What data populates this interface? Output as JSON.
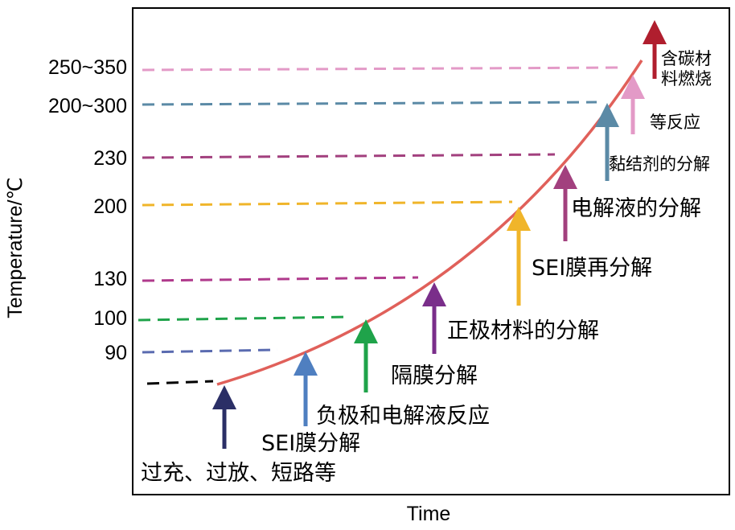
{
  "chart_data": {
    "type": "line",
    "xlabel": "Time",
    "ylabel": "Temperature/℃",
    "y_ticks": [
      "250~350",
      "200~300",
      "230",
      "200",
      "130",
      "100",
      "90"
    ],
    "threshold_lines": [
      {
        "color": "#000000"
      },
      {
        "color": "#5a6bb0"
      },
      {
        "color": "#1fa34a"
      },
      {
        "color": "#b03a8c"
      },
      {
        "color": "#f0b52a"
      },
      {
        "color": "#a2407e"
      },
      {
        "color": "#5b8aa6"
      },
      {
        "color": "#e39ac7"
      }
    ],
    "curve": {
      "color": "#e0605a"
    },
    "events": [
      {
        "label": "过充、过放、短路等",
        "color": "#2b2f66"
      },
      {
        "label": "SEI膜分解",
        "color": "#4f7fc0"
      },
      {
        "label": "负极和电解液反应",
        "color": "#1fa34a"
      },
      {
        "label": "隔膜分解",
        "color": "#7a2e8a"
      },
      {
        "label": "正极材料的分解",
        "color": "#f0b52a"
      },
      {
        "label": "SEI膜再分解",
        "color": "#a2407e"
      },
      {
        "label": "电解液的分解",
        "color": "#5b8aa6"
      },
      {
        "label": "黏结剂的分解",
        "color": "#e39ac7"
      },
      {
        "label": "等反应",
        "color": "#000000"
      },
      {
        "label": "含碳材料燃烧",
        "color": "#b01e2e"
      }
    ]
  }
}
